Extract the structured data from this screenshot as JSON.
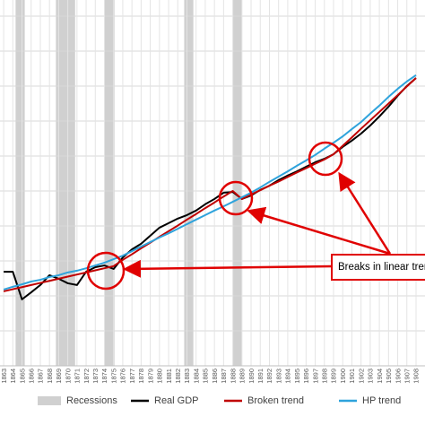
{
  "chart_data": {
    "type": "line",
    "x": [
      1863,
      1864,
      1865,
      1866,
      1867,
      1868,
      1869,
      1870,
      1871,
      1872,
      1873,
      1874,
      1875,
      1876,
      1877,
      1878,
      1879,
      1880,
      1881,
      1882,
      1883,
      1884,
      1885,
      1886,
      1887,
      1888,
      1889,
      1890,
      1891,
      1892,
      1893,
      1894,
      1895,
      1896,
      1897,
      1898,
      1899,
      1900,
      1901,
      1902,
      1903,
      1904,
      1905,
      1906,
      1907,
      1908
    ],
    "xlim": [
      1862.6,
      1908.98
    ],
    "xticks": [
      1863,
      1864,
      1865,
      1866,
      1867,
      1868,
      1869,
      1870,
      1871,
      1872,
      1873,
      1874,
      1875,
      1876,
      1877,
      1878,
      1879,
      1880,
      1881,
      1882,
      1883,
      1884,
      1885,
      1886,
      1887,
      1888,
      1889,
      1890,
      1891,
      1892,
      1893,
      1894,
      1895,
      1896,
      1897,
      1898,
      1899,
      1900,
      1901,
      1902,
      1903,
      1904,
      1905,
      1906,
      1907,
      1908
    ],
    "ylim": [
      0,
      10.46
    ],
    "yticks": [
      0,
      1,
      2,
      3,
      4,
      5,
      6,
      7,
      8,
      9,
      10
    ],
    "show_ytick_labels": false,
    "grid": true,
    "recessions": {
      "name": "Recessions",
      "color": "#d0d0d0",
      "ranges": [
        [
          1864.3,
          1865.3
        ],
        [
          1868.7,
          1870.8
        ],
        [
          1874.0,
          1875.1
        ],
        [
          1882.7,
          1883.7
        ],
        [
          1888.0,
          1889.0
        ]
      ]
    },
    "series": [
      {
        "name": "Real GDP",
        "color": "#000000",
        "values": [
          2.69,
          2.69,
          1.9,
          2.1,
          2.31,
          2.59,
          2.49,
          2.36,
          2.31,
          2.69,
          2.82,
          2.87,
          2.77,
          3.1,
          3.33,
          3.49,
          3.72,
          3.95,
          4.08,
          4.21,
          4.31,
          4.44,
          4.62,
          4.77,
          4.95,
          4.97,
          4.77,
          4.87,
          5.03,
          5.15,
          5.31,
          5.44,
          5.56,
          5.69,
          5.82,
          5.92,
          6.05,
          6.26,
          6.44,
          6.64,
          6.87,
          7.13,
          7.41,
          7.72,
          8.0,
          8.23
        ]
      },
      {
        "name": "Broken trend",
        "color": "#c00000",
        "values": [
          2.13,
          2.19,
          2.25,
          2.31,
          2.37,
          2.43,
          2.49,
          2.55,
          2.61,
          2.67,
          2.73,
          2.79,
          2.85,
          3.03,
          3.19,
          3.36,
          3.52,
          3.69,
          3.85,
          4.01,
          4.18,
          4.34,
          4.51,
          4.67,
          4.84,
          5.0,
          4.77,
          4.9,
          5.02,
          5.15,
          5.27,
          5.4,
          5.53,
          5.65,
          5.78,
          5.9,
          6.05,
          6.29,
          6.53,
          6.78,
          7.02,
          7.26,
          7.5,
          7.74,
          7.99,
          8.23
        ]
      },
      {
        "name": "HP trend",
        "color": "#2ea3dc",
        "values": [
          2.18,
          2.26,
          2.33,
          2.41,
          2.46,
          2.54,
          2.59,
          2.67,
          2.72,
          2.79,
          2.87,
          2.95,
          3.05,
          3.15,
          3.28,
          3.41,
          3.54,
          3.67,
          3.79,
          3.92,
          4.05,
          4.18,
          4.31,
          4.44,
          4.56,
          4.69,
          4.82,
          4.95,
          5.1,
          5.26,
          5.41,
          5.56,
          5.72,
          5.87,
          6.03,
          6.21,
          6.38,
          6.56,
          6.77,
          6.97,
          7.21,
          7.44,
          7.69,
          7.92,
          8.13,
          8.31
        ]
      }
    ],
    "annotation": "Breaks in linear trend"
  }
}
